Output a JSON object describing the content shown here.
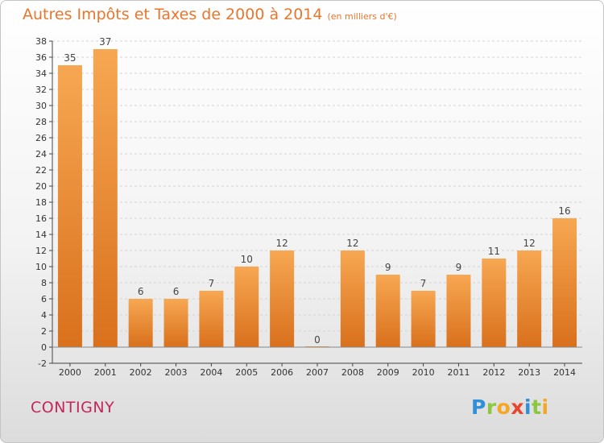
{
  "title": "Autres Impôts et Taxes de 2000 à 2014",
  "subtitle": "(en milliers d'€)",
  "commune": "CONTIGNY",
  "logo": {
    "text": "Proxiti",
    "letters": [
      {
        "ch": "P",
        "color": "#2f8fd8"
      },
      {
        "ch": "r",
        "color": "#8dc63f"
      },
      {
        "ch": "o",
        "color": "#f5a623"
      },
      {
        "ch": "x",
        "color": "#e8452c"
      },
      {
        "ch": "i",
        "color": "#2f8fd8"
      },
      {
        "ch": "t",
        "color": "#8dc63f"
      },
      {
        "ch": "i",
        "color": "#f5a623"
      }
    ]
  },
  "colors": {
    "title": "#e8762d",
    "commune": "#c4265a",
    "bar_light": "#f7a752",
    "bar_dark": "#d9701c",
    "axis": "#444444"
  },
  "chart_data": {
    "type": "bar",
    "categories": [
      "2000",
      "2001",
      "2002",
      "2003",
      "2004",
      "2005",
      "2006",
      "2007",
      "2008",
      "2009",
      "2010",
      "2011",
      "2012",
      "2013",
      "2014"
    ],
    "values": [
      35,
      37,
      6,
      6,
      7,
      10,
      12,
      0,
      12,
      9,
      7,
      9,
      11,
      12,
      16
    ],
    "ylim": [
      -2,
      38
    ],
    "yticks": [
      -2,
      0,
      2,
      4,
      6,
      8,
      10,
      12,
      14,
      16,
      18,
      20,
      22,
      24,
      26,
      28,
      30,
      32,
      34,
      36,
      38
    ],
    "grid": true,
    "data_labels": true
  }
}
